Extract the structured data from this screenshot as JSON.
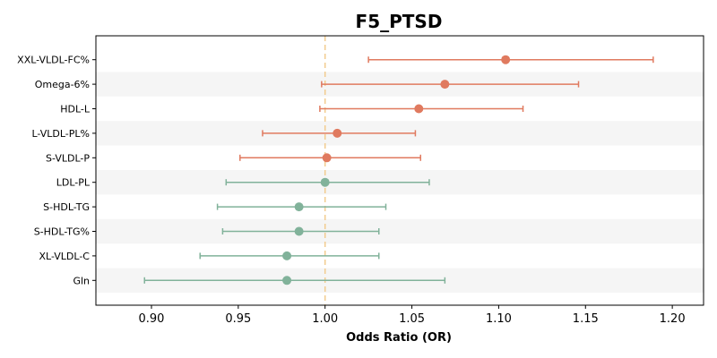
{
  "chart_data": {
    "type": "forest",
    "title": "F5_PTSD",
    "xlabel": "Odds Ratio (OR)",
    "xlim": [
      0.868,
      1.218
    ],
    "xticks": [
      "0.90",
      "0.95",
      "1.00",
      "1.05",
      "1.10",
      "1.15",
      "1.20"
    ],
    "reference_line": 1.0,
    "colors": {
      "positive": "#e07a5f",
      "negative": "#81b29a",
      "reference": "#f2cc8f",
      "band": "#f5f5f5"
    },
    "rows": [
      {
        "label": "XXL-VLDL-FC%",
        "or": 1.104,
        "ci_low": 1.025,
        "ci_high": 1.189,
        "group": "positive"
      },
      {
        "label": "Omega-6%",
        "or": 1.069,
        "ci_low": 0.998,
        "ci_high": 1.146,
        "group": "positive"
      },
      {
        "label": "HDL-L",
        "or": 1.054,
        "ci_low": 0.997,
        "ci_high": 1.114,
        "group": "positive"
      },
      {
        "label": "L-VLDL-PL%",
        "or": 1.007,
        "ci_low": 0.964,
        "ci_high": 1.052,
        "group": "positive"
      },
      {
        "label": "S-VLDL-P",
        "or": 1.001,
        "ci_low": 0.951,
        "ci_high": 1.055,
        "group": "positive"
      },
      {
        "label": "LDL-PL",
        "or": 1.0,
        "ci_low": 0.943,
        "ci_high": 1.06,
        "group": "negative"
      },
      {
        "label": "S-HDL-TG",
        "or": 0.985,
        "ci_low": 0.938,
        "ci_high": 1.035,
        "group": "negative"
      },
      {
        "label": "S-HDL-TG%",
        "or": 0.985,
        "ci_low": 0.941,
        "ci_high": 1.031,
        "group": "negative"
      },
      {
        "label": "XL-VLDL-C",
        "or": 0.978,
        "ci_low": 0.928,
        "ci_high": 1.031,
        "group": "negative"
      },
      {
        "label": "Gln",
        "or": 0.978,
        "ci_low": 0.896,
        "ci_high": 1.069,
        "group": "negative"
      }
    ]
  }
}
